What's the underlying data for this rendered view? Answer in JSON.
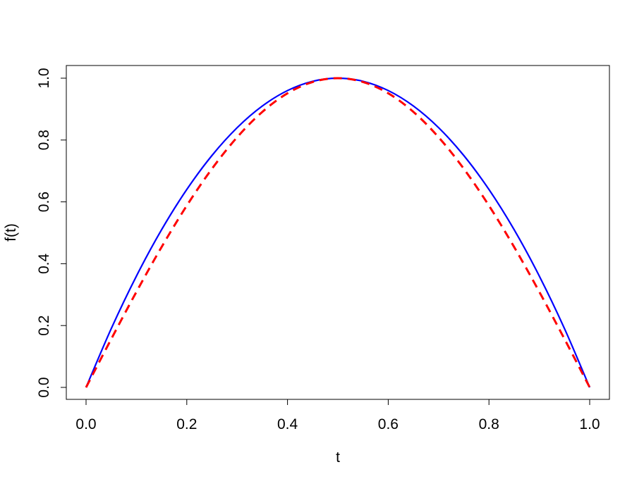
{
  "chart_data": {
    "type": "line",
    "title": "",
    "xlabel": "t",
    "ylabel": "f(t)",
    "xlim": [
      0,
      1
    ],
    "ylim": [
      0,
      1
    ],
    "xticks": [
      "0.0",
      "0.2",
      "0.4",
      "0.6",
      "0.8",
      "1.0"
    ],
    "yticks": [
      "0.0",
      "0.2",
      "0.4",
      "0.6",
      "0.8",
      "1.0"
    ],
    "grid": false,
    "x": [
      0,
      0.05,
      0.1,
      0.15,
      0.2,
      0.25,
      0.3,
      0.35,
      0.4,
      0.45,
      0.5,
      0.55,
      0.6,
      0.65,
      0.7,
      0.75,
      0.8,
      0.85,
      0.9,
      0.95,
      1
    ],
    "series": [
      {
        "color": "#0000ff",
        "style": "solid",
        "values": [
          0,
          0.19,
          0.36,
          0.51,
          0.64,
          0.75,
          0.84,
          0.91,
          0.96,
          0.99,
          1,
          0.99,
          0.96,
          0.91,
          0.84,
          0.75,
          0.64,
          0.51,
          0.36,
          0.19,
          0
        ]
      },
      {
        "color": "#ff0000",
        "style": "dashed",
        "values": [
          0,
          0.1564,
          0.309,
          0.454,
          0.5878,
          0.7071,
          0.809,
          0.891,
          0.9511,
          0.9877,
          1,
          0.9877,
          0.9511,
          0.891,
          0.809,
          0.7071,
          0.5878,
          0.454,
          0.309,
          0.1564,
          0
        ]
      }
    ]
  }
}
